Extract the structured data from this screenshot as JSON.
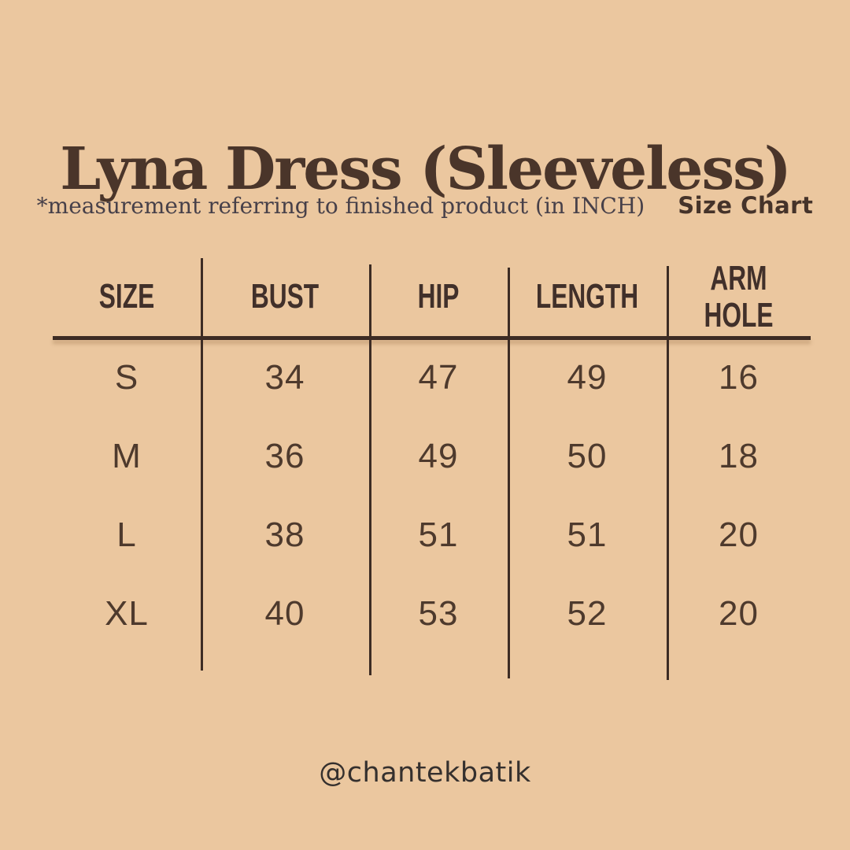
{
  "page": {
    "title": "Lyna Dress (Sleeveless)",
    "note": "*measurement referring to finished product (in INCH)",
    "chart_label": "Size Chart"
  },
  "chart_data": {
    "type": "table",
    "title": "Lyna Dress (Sleeveless)",
    "subtitle": "*measurement referring to finished product (in INCH)",
    "unit": "INCH",
    "columns": [
      "SIZE",
      "BUST",
      "HIP",
      "LENGTH",
      "ARM HOLE"
    ],
    "rows": [
      [
        "S",
        34,
        47,
        49,
        16
      ],
      [
        "M",
        36,
        49,
        50,
        18
      ],
      [
        "L",
        38,
        51,
        51,
        20
      ],
      [
        "XL",
        40,
        53,
        52,
        20
      ]
    ]
  },
  "table": {
    "headers": [
      "SIZE",
      "BUST",
      "HIP",
      "LENGTH",
      "ARM HOLE"
    ],
    "rows": [
      [
        "S",
        "34",
        "47",
        "49",
        "16"
      ],
      [
        "M",
        "36",
        "49",
        "50",
        "18"
      ],
      [
        "L",
        "38",
        "51",
        "51",
        "20"
      ],
      [
        "XL",
        "40",
        "53",
        "52",
        "20"
      ]
    ]
  },
  "footer": {
    "handle": "@chantekbatik"
  },
  "colors": {
    "background": "#ebc79f",
    "title_ink": "#4a352a",
    "note_ink": "#474049",
    "label_ink": "#45332a",
    "line_ink": "#3d2c24",
    "cell_ink": "#4e3a2d",
    "footer_ink": "#35302e"
  }
}
